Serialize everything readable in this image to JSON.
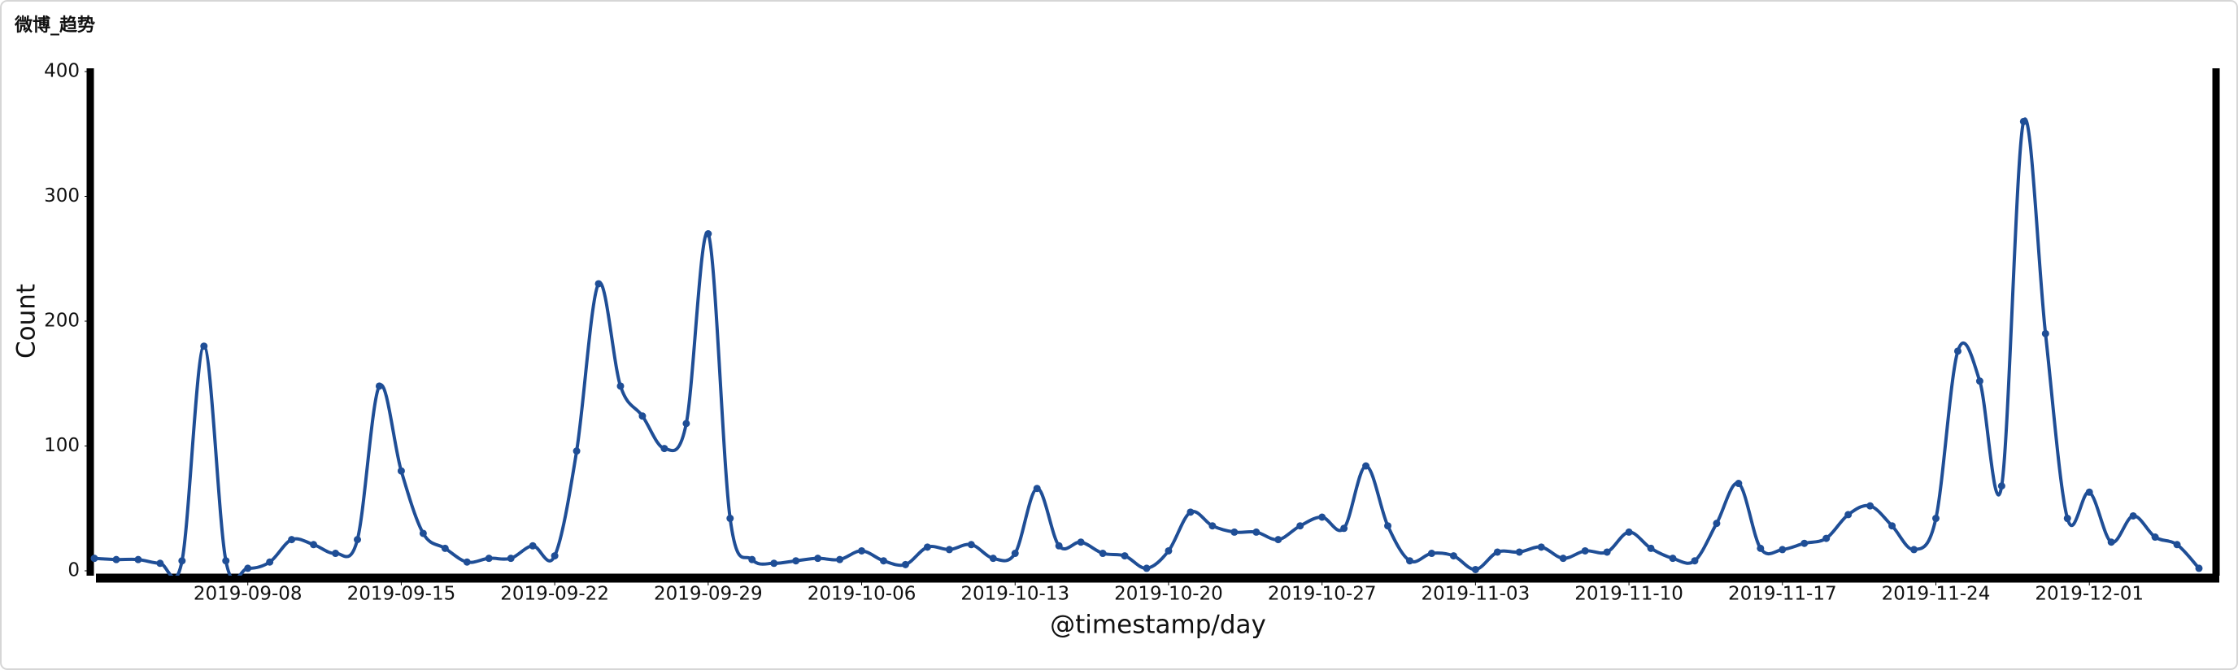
{
  "chart_data": {
    "type": "line",
    "title": "微博_趋势",
    "xlabel": "@timestamp/day",
    "ylabel": "Count",
    "x": [
      "2019-09-01",
      "2019-09-02",
      "2019-09-03",
      "2019-09-04",
      "2019-09-05",
      "2019-09-06",
      "2019-09-07",
      "2019-09-08",
      "2019-09-09",
      "2019-09-10",
      "2019-09-11",
      "2019-09-12",
      "2019-09-13",
      "2019-09-14",
      "2019-09-15",
      "2019-09-16",
      "2019-09-17",
      "2019-09-18",
      "2019-09-19",
      "2019-09-20",
      "2019-09-21",
      "2019-09-22",
      "2019-09-23",
      "2019-09-24",
      "2019-09-25",
      "2019-09-26",
      "2019-09-27",
      "2019-09-28",
      "2019-09-29",
      "2019-09-30",
      "2019-10-01",
      "2019-10-02",
      "2019-10-03",
      "2019-10-04",
      "2019-10-05",
      "2019-10-06",
      "2019-10-07",
      "2019-10-08",
      "2019-10-09",
      "2019-10-10",
      "2019-10-11",
      "2019-10-12",
      "2019-10-13",
      "2019-10-14",
      "2019-10-15",
      "2019-10-16",
      "2019-10-17",
      "2019-10-18",
      "2019-10-19",
      "2019-10-20",
      "2019-10-21",
      "2019-10-22",
      "2019-10-23",
      "2019-10-24",
      "2019-10-25",
      "2019-10-26",
      "2019-10-27",
      "2019-10-28",
      "2019-10-29",
      "2019-10-30",
      "2019-10-31",
      "2019-11-01",
      "2019-11-02",
      "2019-11-03",
      "2019-11-04",
      "2019-11-05",
      "2019-11-06",
      "2019-11-07",
      "2019-11-08",
      "2019-11-09",
      "2019-11-10",
      "2019-11-11",
      "2019-11-12",
      "2019-11-13",
      "2019-11-14",
      "2019-11-15",
      "2019-11-16",
      "2019-11-17",
      "2019-11-18",
      "2019-11-19",
      "2019-11-20",
      "2019-11-21",
      "2019-11-22",
      "2019-11-23",
      "2019-11-24",
      "2019-11-25",
      "2019-11-26",
      "2019-11-27",
      "2019-11-28",
      "2019-11-29",
      "2019-11-30",
      "2019-12-01",
      "2019-12-02",
      "2019-12-03",
      "2019-12-04",
      "2019-12-05",
      "2019-12-06"
    ],
    "series": [
      {
        "name": "Count",
        "color": "#1f4e96",
        "values": [
          10,
          9,
          9,
          6,
          8,
          180,
          8,
          2,
          7,
          25,
          21,
          14,
          25,
          148,
          80,
          30,
          18,
          7,
          10,
          10,
          20,
          12,
          96,
          230,
          148,
          124,
          98,
          118,
          270,
          42,
          9,
          6,
          8,
          10,
          9,
          16,
          8,
          5,
          19,
          17,
          21,
          10,
          14,
          66,
          20,
          23,
          14,
          12,
          2,
          16,
          47,
          36,
          31,
          31,
          25,
          36,
          43,
          34,
          84,
          36,
          8,
          14,
          12,
          1,
          15,
          15,
          19,
          10,
          16,
          15,
          31,
          18,
          10,
          8,
          38,
          70,
          18,
          17,
          22,
          26,
          45,
          52,
          36,
          17,
          42,
          176,
          152,
          68,
          360,
          190,
          42,
          63,
          23,
          44,
          27,
          21,
          2
        ]
      }
    ],
    "xlim": [
      "2019-09-01",
      "2019-12-06"
    ],
    "xticks": [
      "2019-09-08",
      "2019-09-15",
      "2019-09-22",
      "2019-09-29",
      "2019-10-06",
      "2019-10-13",
      "2019-10-20",
      "2019-10-27",
      "2019-11-03",
      "2019-11-10",
      "2019-11-17",
      "2019-11-24",
      "2019-12-01"
    ],
    "ylim": [
      0,
      400
    ],
    "yticks": [
      0,
      100,
      200,
      300,
      400
    ],
    "grid": false
  }
}
